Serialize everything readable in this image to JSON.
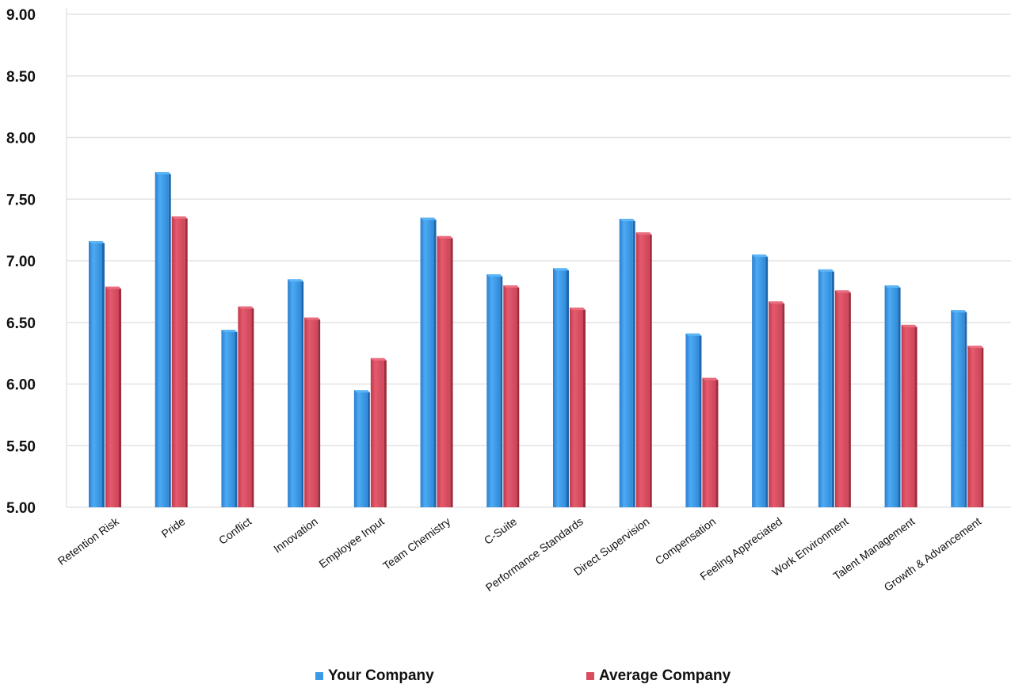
{
  "chart_data": {
    "type": "bar",
    "categories": [
      "Retention Risk",
      "Pride",
      "Conflict",
      "Innovation",
      "Employee Input",
      "Team Chemistry",
      "C-Suite",
      "Performance Standards",
      "Direct Supervision",
      "Compensation",
      "Feeling Appreciated",
      "Work Environment",
      "Talent Management",
      "Growth & Advancement"
    ],
    "series": [
      {
        "name": "Your Company",
        "color": "#3b9ae6",
        "values": [
          7.16,
          7.72,
          6.44,
          6.85,
          5.95,
          7.35,
          6.89,
          6.94,
          7.34,
          6.41,
          7.05,
          6.93,
          6.8,
          6.6
        ]
      },
      {
        "name": "Average Company",
        "color": "#d94b5f",
        "values": [
          6.79,
          7.36,
          6.63,
          6.54,
          6.21,
          7.2,
          6.8,
          6.62,
          7.23,
          6.05,
          6.67,
          6.76,
          6.48,
          6.31
        ]
      }
    ],
    "yticks": [
      "5.00",
      "5.50",
      "6.00",
      "6.50",
      "7.00",
      "7.50",
      "8.00",
      "8.50",
      "9.00"
    ],
    "ylim": [
      5.0,
      9.0
    ],
    "grid": true,
    "legend_position": "bottom",
    "title": "",
    "xlabel": "",
    "ylabel": ""
  },
  "legend": [
    {
      "label": "Your Company",
      "color": "#3b9ae6"
    },
    {
      "label": "Average Company",
      "color": "#d94b5f"
    }
  ]
}
